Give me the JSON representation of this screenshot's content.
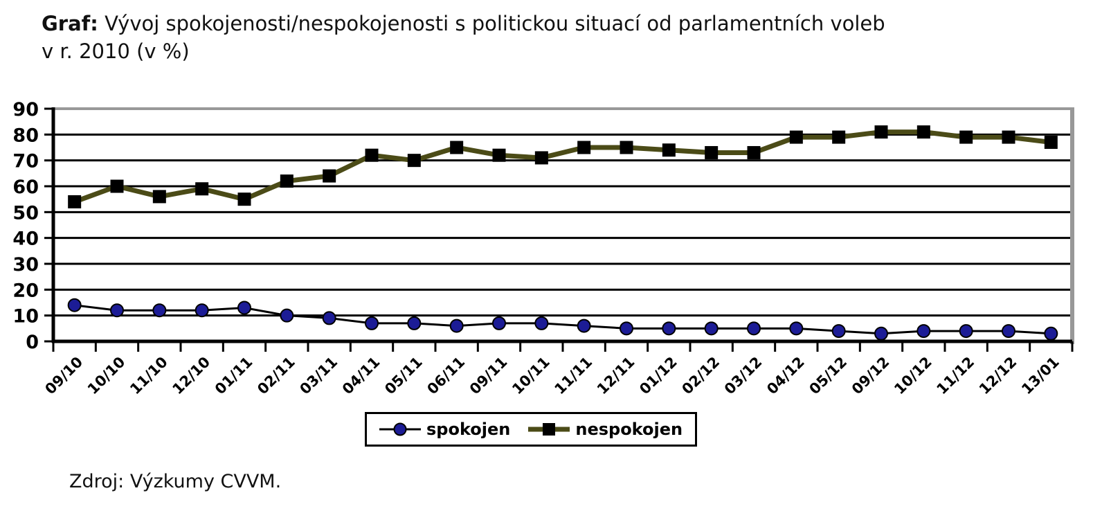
{
  "title": {
    "prefix": "Graf:",
    "line1": "Vývoj spokojenosti/nespokojenosti s politickou situací od parlamentních voleb",
    "line2": "v r. 2010 (v %)"
  },
  "source": "Zdroj: Výzkumy CVVM.",
  "colors": {
    "grid": "#000000",
    "axis": "#000000",
    "plot_frame_gray": "#989898",
    "background": "#ffffff"
  },
  "chart_data": {
    "type": "line",
    "title": "Vývoj spokojenosti/nespokojenosti s politickou situací od parlamentních voleb v r. 2010 (v %)",
    "categories": [
      "09/10",
      "10/10",
      "11/10",
      "12/10",
      "01/11",
      "02/11",
      "03/11",
      "04/11",
      "05/11",
      "06/11",
      "09/11",
      "10/11",
      "11/11",
      "12/11",
      "01/12",
      "02/12",
      "03/12",
      "04/12",
      "05/12",
      "09/12",
      "10/12",
      "11/12",
      "12/12",
      "13/01"
    ],
    "series": [
      {
        "name": "spokojen",
        "marker": "circle",
        "line_color": "#000000",
        "marker_color": "#1c1c96",
        "line_width": 3,
        "values": [
          14,
          12,
          12,
          12,
          13,
          10,
          9,
          7,
          7,
          6,
          7,
          7,
          6,
          5,
          5,
          5,
          5,
          5,
          4,
          3,
          4,
          4,
          4,
          3
        ]
      },
      {
        "name": "nespokojen",
        "marker": "square",
        "line_color": "#4b4b17",
        "marker_color": "#000000",
        "line_width": 7,
        "values": [
          54,
          60,
          56,
          59,
          55,
          62,
          64,
          72,
          70,
          75,
          72,
          71,
          75,
          75,
          74,
          73,
          73,
          79,
          79,
          81,
          81,
          79,
          79,
          77
        ]
      }
    ],
    "ylim": [
      0,
      90
    ],
    "ytick_step": 10,
    "xlabel": "",
    "ylabel": "",
    "grid": true,
    "legend_position": "bottom-center"
  }
}
